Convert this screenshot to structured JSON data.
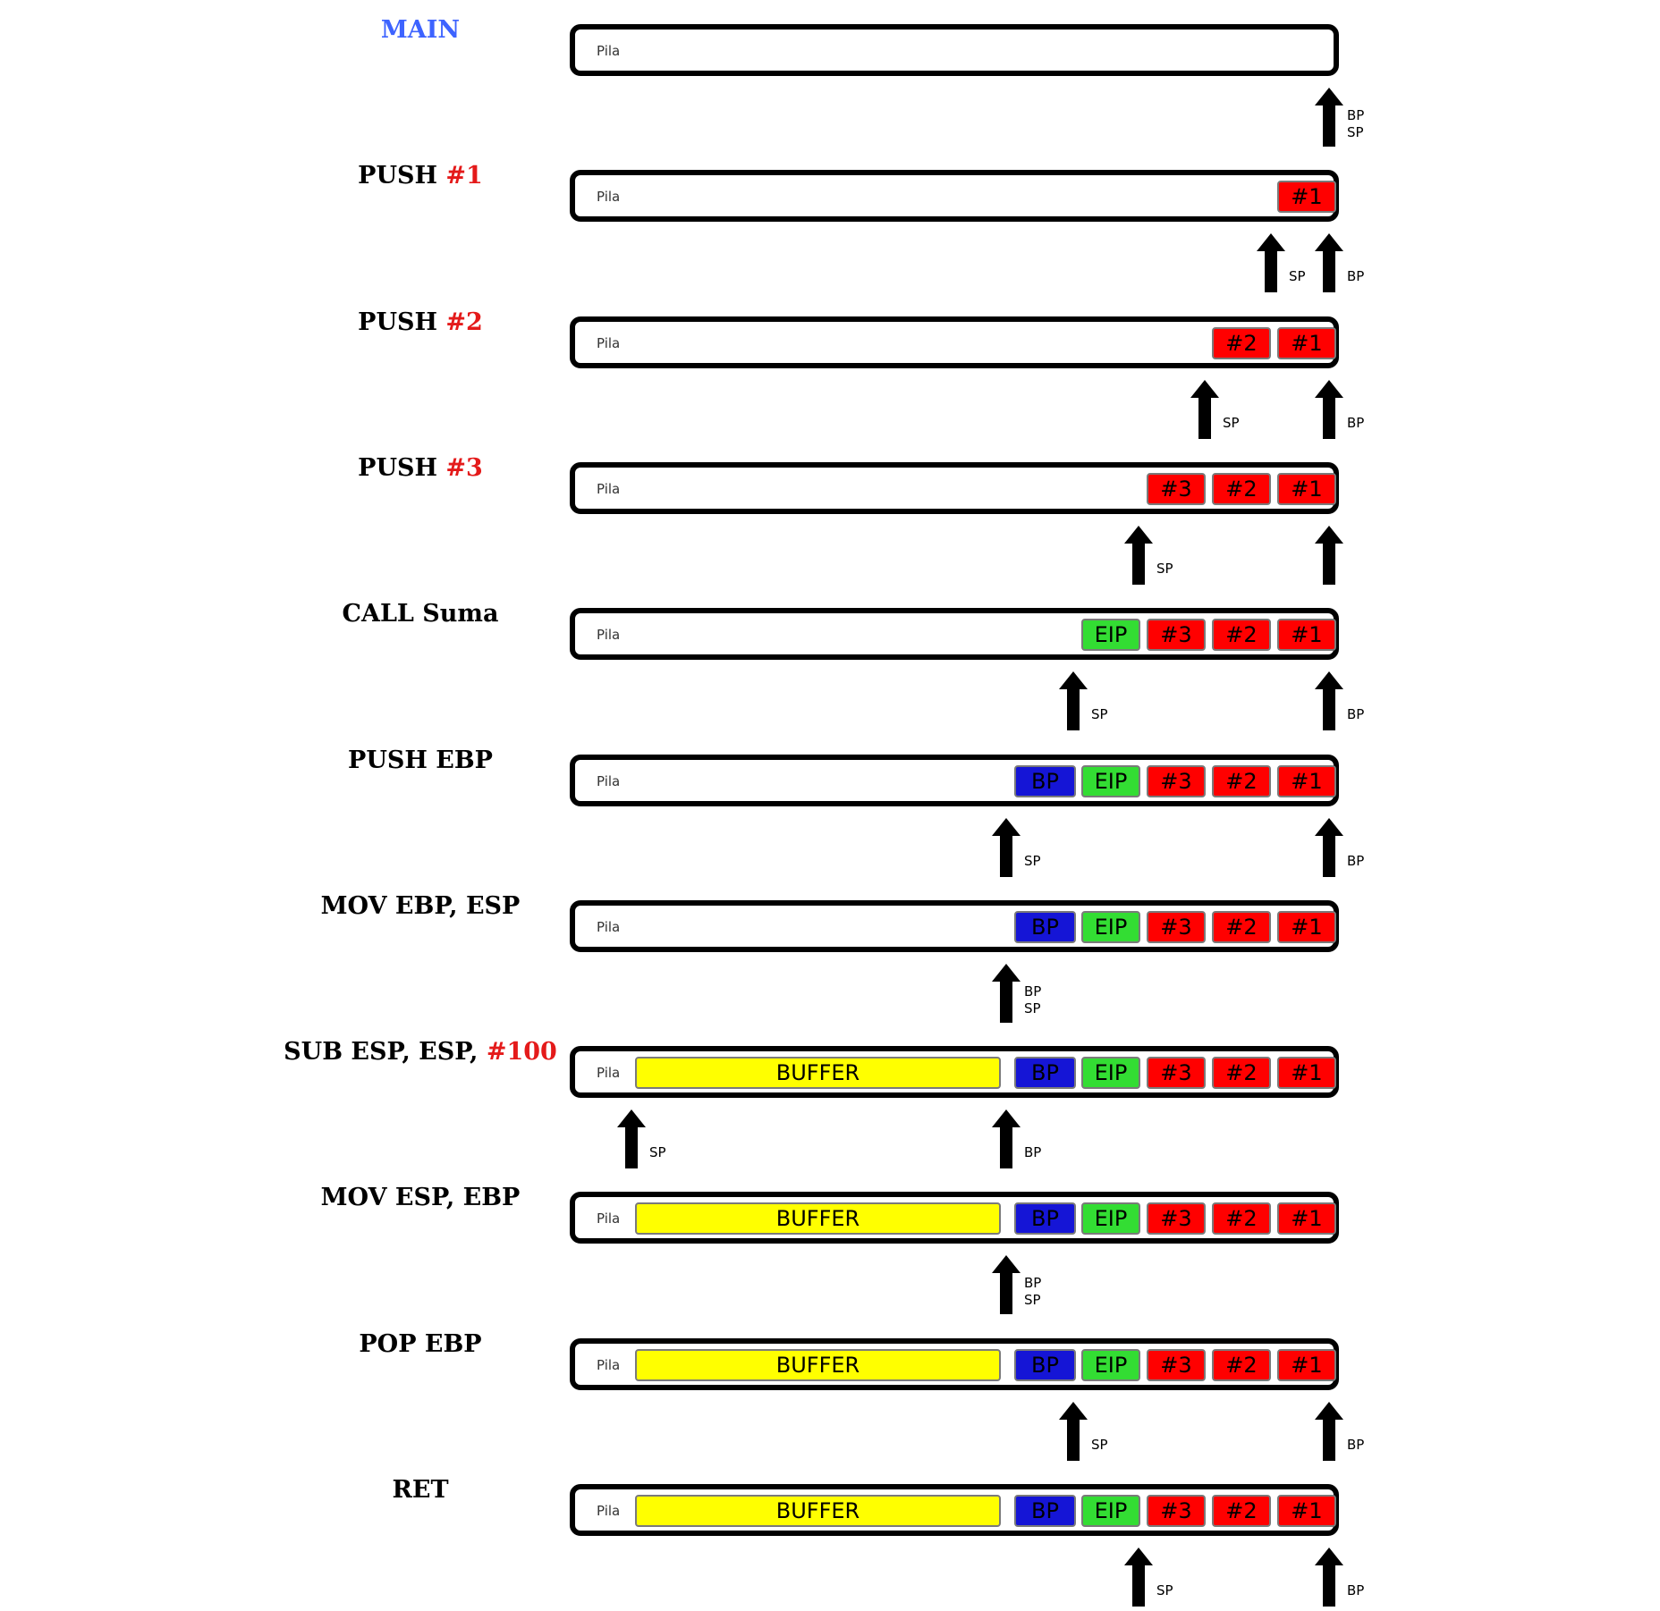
{
  "pila_label": "Pila",
  "ptr_names": {
    "bp": "BP",
    "sp": "SP"
  },
  "colors": {
    "main_label": "#3d63ff",
    "highlight": "#e41a1a",
    "param": "#ff0000",
    "eip": "#33dd33",
    "bp_cell": "#1515d6",
    "buffer": "#ffff00"
  },
  "steps": [
    {
      "label": [
        {
          "text": "MAIN",
          "style": "main"
        }
      ],
      "cells": [],
      "pointers": [
        {
          "pos": "bottom",
          "text": [
            "BP",
            "SP"
          ]
        }
      ]
    },
    {
      "label": [
        {
          "text": "PUSH "
        },
        {
          "text": "#1",
          "style": "hl"
        }
      ],
      "cells": [
        {
          "text": "#1",
          "kind": "red"
        }
      ],
      "pointers": [
        {
          "pos": "#1",
          "text": [
            "SP"
          ]
        },
        {
          "pos": "bottom",
          "text": [
            "BP"
          ]
        }
      ]
    },
    {
      "label": [
        {
          "text": "PUSH "
        },
        {
          "text": "#2",
          "style": "hl"
        }
      ],
      "cells": [
        {
          "text": "#2",
          "kind": "red"
        },
        {
          "text": "#1",
          "kind": "red"
        }
      ],
      "pointers": [
        {
          "pos": "#2",
          "text": [
            "SP"
          ]
        },
        {
          "pos": "bottom",
          "text": [
            "BP"
          ]
        }
      ]
    },
    {
      "label": [
        {
          "text": "PUSH "
        },
        {
          "text": "#3",
          "style": "hl"
        }
      ],
      "cells": [
        {
          "text": "#3",
          "kind": "red"
        },
        {
          "text": "#2",
          "kind": "red"
        },
        {
          "text": "#1",
          "kind": "red"
        }
      ],
      "pointers": [
        {
          "pos": "#3",
          "text": [
            "SP"
          ]
        },
        {
          "pos": "bottom",
          "text": []
        }
      ]
    },
    {
      "label": [
        {
          "text": "CALL Suma"
        }
      ],
      "cells": [
        {
          "text": "EIP",
          "kind": "green"
        },
        {
          "text": "#3",
          "kind": "red"
        },
        {
          "text": "#2",
          "kind": "red"
        },
        {
          "text": "#1",
          "kind": "red"
        }
      ],
      "pointers": [
        {
          "pos": "EIP",
          "text": [
            "SP"
          ]
        },
        {
          "pos": "bottom",
          "text": [
            "BP"
          ]
        }
      ]
    },
    {
      "label": [
        {
          "text": "PUSH EBP"
        }
      ],
      "cells": [
        {
          "text": "BP",
          "kind": "blue"
        },
        {
          "text": "EIP",
          "kind": "green"
        },
        {
          "text": "#3",
          "kind": "red"
        },
        {
          "text": "#2",
          "kind": "red"
        },
        {
          "text": "#1",
          "kind": "red"
        }
      ],
      "pointers": [
        {
          "pos": "BP",
          "text": [
            "SP"
          ]
        },
        {
          "pos": "bottom",
          "text": [
            "BP"
          ]
        }
      ]
    },
    {
      "label": [
        {
          "text": "MOV EBP, ESP"
        }
      ],
      "cells": [
        {
          "text": "BP",
          "kind": "blue"
        },
        {
          "text": "EIP",
          "kind": "green"
        },
        {
          "text": "#3",
          "kind": "red"
        },
        {
          "text": "#2",
          "kind": "red"
        },
        {
          "text": "#1",
          "kind": "red"
        }
      ],
      "pointers": [
        {
          "pos": "BP",
          "text": [
            "BP",
            "SP"
          ]
        }
      ]
    },
    {
      "label": [
        {
          "text": "SUB ESP, ESP, "
        },
        {
          "text": "#100",
          "style": "hl"
        }
      ],
      "cells": [
        {
          "text": "BUFFER",
          "kind": "yellow"
        },
        {
          "text": "BP",
          "kind": "blue"
        },
        {
          "text": "EIP",
          "kind": "green"
        },
        {
          "text": "#3",
          "kind": "red"
        },
        {
          "text": "#2",
          "kind": "red"
        },
        {
          "text": "#1",
          "kind": "red"
        }
      ],
      "pointers": [
        {
          "pos": "BUFFER",
          "text": [
            "SP"
          ]
        },
        {
          "pos": "BP",
          "text": [
            "BP"
          ]
        }
      ]
    },
    {
      "label": [
        {
          "text": "MOV ESP, EBP"
        }
      ],
      "cells": [
        {
          "text": "BUFFER",
          "kind": "yellow"
        },
        {
          "text": "BP",
          "kind": "blue"
        },
        {
          "text": "EIP",
          "kind": "green"
        },
        {
          "text": "#3",
          "kind": "red"
        },
        {
          "text": "#2",
          "kind": "red"
        },
        {
          "text": "#1",
          "kind": "red"
        }
      ],
      "pointers": [
        {
          "pos": "BP",
          "text": [
            "BP",
            "SP"
          ]
        }
      ]
    },
    {
      "label": [
        {
          "text": "POP EBP"
        }
      ],
      "cells": [
        {
          "text": "BUFFER",
          "kind": "yellow"
        },
        {
          "text": "BP",
          "kind": "blue"
        },
        {
          "text": "EIP",
          "kind": "green"
        },
        {
          "text": "#3",
          "kind": "red"
        },
        {
          "text": "#2",
          "kind": "red"
        },
        {
          "text": "#1",
          "kind": "red"
        }
      ],
      "pointers": [
        {
          "pos": "EIP",
          "text": [
            "SP"
          ]
        },
        {
          "pos": "bottom",
          "text": [
            "BP"
          ]
        }
      ]
    },
    {
      "label": [
        {
          "text": "RET"
        }
      ],
      "cells": [
        {
          "text": "BUFFER",
          "kind": "yellow"
        },
        {
          "text": "BP",
          "kind": "blue"
        },
        {
          "text": "EIP",
          "kind": "green"
        },
        {
          "text": "#3",
          "kind": "red"
        },
        {
          "text": "#2",
          "kind": "red"
        },
        {
          "text": "#1",
          "kind": "red"
        }
      ],
      "pointers": [
        {
          "pos": "#3",
          "text": [
            "SP"
          ]
        },
        {
          "pos": "bottom",
          "text": [
            "BP"
          ]
        }
      ]
    }
  ]
}
